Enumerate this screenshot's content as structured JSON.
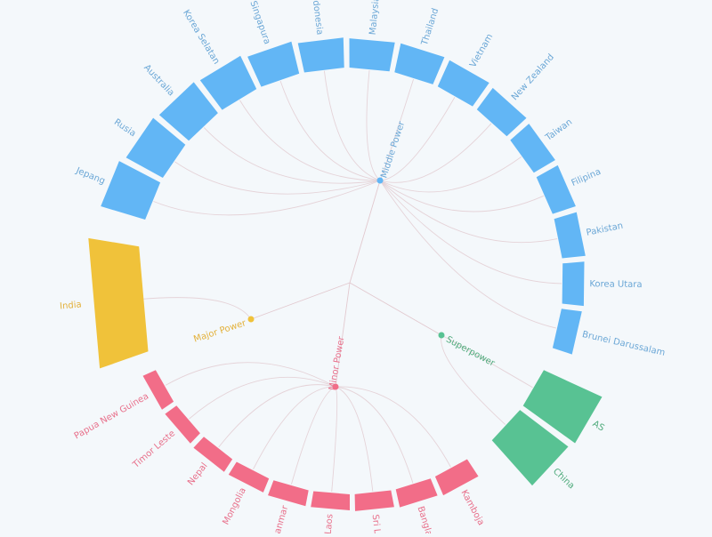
{
  "chart_data": {
    "type": "radial-tree",
    "title": "",
    "groups": [
      {
        "name": "Middle Power",
        "color": "#62b6f5",
        "text_color": "#6ba7d6",
        "members": [
          {
            "name": "Jepang",
            "value": 88
          },
          {
            "name": "Rusia",
            "value": 70
          },
          {
            "name": "Australia",
            "value": 60
          },
          {
            "name": "Korea Selatan",
            "value": 52
          },
          {
            "name": "Singapura",
            "value": 40
          },
          {
            "name": "Indonesia",
            "value": 32
          },
          {
            "name": "Malaysia",
            "value": 30
          },
          {
            "name": "Thailand",
            "value": 31
          },
          {
            "name": "Vietnam",
            "value": 29
          },
          {
            "name": "New Zealand",
            "value": 24
          },
          {
            "name": "Taiwan",
            "value": 20
          },
          {
            "name": "Filipina",
            "value": 19
          },
          {
            "name": "Pakistan",
            "value": 17
          },
          {
            "name": "Korea Utara",
            "value": 14
          },
          {
            "name": "Brunei Darussalam",
            "value": 12
          }
        ]
      },
      {
        "name": "Superpower",
        "color": "#58c293",
        "text_color": "#4eaa7b",
        "members": [
          {
            "name": "AS",
            "value": 180
          },
          {
            "name": "China",
            "value": 160
          }
        ]
      },
      {
        "name": "Minor Power",
        "color": "#f26d88",
        "text_color": "#e8708b",
        "members": [
          {
            "name": "Kamboja",
            "value": 12
          },
          {
            "name": "Bangladesh",
            "value": 9
          },
          {
            "name": "Sri Lanka",
            "value": 7
          },
          {
            "name": "Laos",
            "value": 6
          },
          {
            "name": "Myanmar",
            "value": 6
          },
          {
            "name": "Mongolia",
            "value": 5
          },
          {
            "name": "Nepal",
            "value": 5
          },
          {
            "name": "Timor Leste",
            "value": 4
          },
          {
            "name": "Papua New Guinea",
            "value": 4
          }
        ]
      },
      {
        "name": "Major Power",
        "color": "#f0c23a",
        "text_color": "#e3b13a",
        "members": [
          {
            "name": "India",
            "value": 110
          }
        ]
      }
    ]
  }
}
